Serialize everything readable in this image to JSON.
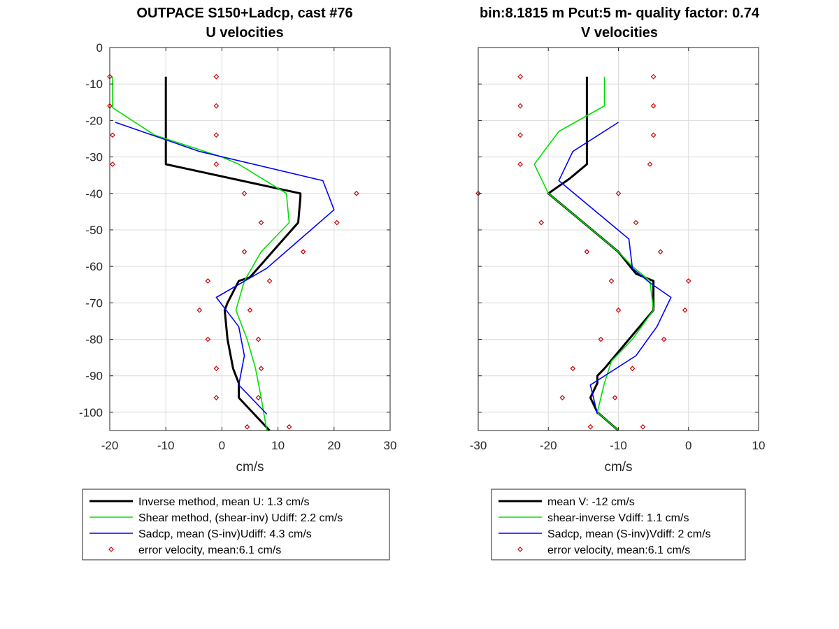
{
  "chart_data": [
    {
      "type": "line",
      "title": "OUTPACE S150+Ladcp, cast #76",
      "subtitle": "U velocities",
      "xlabel": "cm/s",
      "ylabel": "",
      "xlim": [
        -20,
        30
      ],
      "ylim": [
        -105,
        0
      ],
      "xticks": [
        -20,
        -10,
        0,
        10,
        20,
        30
      ],
      "yticks": [
        0,
        -10,
        -20,
        -30,
        -40,
        -50,
        -60,
        -70,
        -80,
        -90,
        -100
      ],
      "grid": true,
      "legend_position": "below",
      "series": [
        {
          "name": "Inverse method, mean U:  1.3 cm/s",
          "color": "#000000",
          "style": "line-thick",
          "x": [
            -10,
            -10,
            -10,
            -10,
            14,
            14,
            13.6,
            9,
            5,
            3,
            1,
            0.5,
            1,
            2,
            3,
            3,
            3,
            8.5
          ],
          "y": [
            -8,
            -16,
            -24,
            -32,
            -40,
            -41,
            -48,
            -56,
            -63,
            -64,
            -70,
            -72,
            -80,
            -88,
            -92,
            -96,
            -96,
            -105
          ]
        },
        {
          "name": "Shear method, (shear-inv)  Udiff:  2.2 cm/s",
          "color": "#00e000",
          "style": "line",
          "x": [
            -19.5,
            -19.5,
            -19.5,
            -12,
            0,
            3,
            11.5,
            12,
            7,
            4,
            2.5,
            4.5,
            6,
            7,
            8
          ],
          "y": [
            -8,
            -16,
            -16.5,
            -24,
            -30,
            -32,
            -40,
            -48,
            -56,
            -64,
            -72,
            -80,
            -88,
            -96,
            -105
          ]
        },
        {
          "name": "Sadcp, mean (S-inv)Udiff: 4.3 cm/s",
          "color": "#0000ff",
          "style": "line",
          "x": [
            -19,
            -4,
            18,
            20,
            14,
            8,
            -1,
            3,
            4,
            3,
            8
          ],
          "y": [
            -20.5,
            -28.5,
            -36.5,
            -44.5,
            -52.5,
            -60.5,
            -68.5,
            -76.5,
            -84.5,
            -92.5,
            -100.5
          ]
        },
        {
          "name": "error velocity, mean:6.1 cm/s",
          "color": "#cc0000",
          "style": "markers",
          "x": [
            -20,
            -1,
            -20,
            -1,
            -19.5,
            -1,
            -19.5,
            -1,
            4,
            24,
            7,
            20.5,
            4,
            14.5,
            -2.5,
            8.5,
            -4,
            5,
            -2.5,
            6.5,
            -1,
            7,
            -1,
            6.5,
            4.5,
            12
          ],
          "y": [
            -8,
            -8,
            -16,
            -16,
            -24,
            -24,
            -32,
            -32,
            -40,
            -40,
            -48,
            -48,
            -56,
            -56,
            -64,
            -64,
            -72,
            -72,
            -80,
            -80,
            -88,
            -88,
            -96,
            -96,
            -104,
            -104
          ]
        }
      ]
    },
    {
      "type": "line",
      "title": "bin:8.1815 m  Pcut:5 m- quality factor:  0.74",
      "subtitle": "V velocities",
      "xlabel": "cm/s",
      "ylabel": "",
      "xlim": [
        -30,
        10
      ],
      "ylim": [
        -105,
        0
      ],
      "xticks": [
        -30,
        -20,
        -10,
        0,
        10
      ],
      "yticks": [
        0,
        -10,
        -20,
        -30,
        -40,
        -50,
        -60,
        -70,
        -80,
        -90,
        -100
      ],
      "grid": true,
      "legend_position": "below",
      "series": [
        {
          "name": "mean V:  -12 cm/s",
          "color": "#000000",
          "style": "line-thick",
          "x": [
            -14.5,
            -14.5,
            -14.5,
            -14.5,
            -17,
            -20,
            -15,
            -10,
            -7.5,
            -5,
            -5,
            -12,
            -13,
            -13,
            -14,
            -13,
            -10
          ],
          "y": [
            -8,
            -16,
            -24,
            -32,
            -36,
            -40,
            -48,
            -56,
            -62,
            -64,
            -72,
            -88,
            -90,
            -92,
            -96,
            -100,
            -105
          ]
        },
        {
          "name": "shear-inverse Vdiff:  1.1 cm/s",
          "color": "#00e000",
          "style": "line",
          "x": [
            -12,
            -12,
            -18.5,
            -22,
            -20,
            -15,
            -10,
            -8,
            -5.5,
            -5,
            -8,
            -11,
            -12,
            -12.5,
            -13,
            -10
          ],
          "y": [
            -8,
            -16,
            -23,
            -32,
            -40,
            -48,
            -56,
            -60,
            -64,
            -72,
            -80,
            -86,
            -92,
            -96,
            -100,
            -105
          ]
        },
        {
          "name": "Sadcp, mean (S-inv)Vdiff: 2 cm/s",
          "color": "#0000ff",
          "style": "line",
          "x": [
            -10,
            -16.5,
            -18.5,
            -13.5,
            -8.5,
            -8,
            -5.5,
            -2.5,
            -4.5,
            -7.5,
            -14,
            -13.5,
            -13
          ],
          "y": [
            -20.5,
            -28.5,
            -36.5,
            -44.5,
            -52.5,
            -60.5,
            -64.5,
            -68.5,
            -76.5,
            -84.5,
            -92.5,
            -96.5,
            -100.5
          ]
        },
        {
          "name": "error velocity, mean:6.1 cm/s",
          "color": "#cc0000",
          "style": "markers",
          "x": [
            -24,
            -5,
            -24,
            -5,
            -24,
            -5,
            -24,
            -5.5,
            -30,
            -10,
            -21,
            -7.5,
            -14.5,
            -4,
            -11,
            0,
            -10,
            -0.5,
            -12.5,
            -3.5,
            -16.5,
            -8,
            -18,
            -10.5,
            -14,
            -6.5
          ],
          "y": [
            -8,
            -8,
            -16,
            -16,
            -24,
            -24,
            -32,
            -32,
            -40,
            -40,
            -48,
            -48,
            -56,
            -56,
            -64,
            -64,
            -72,
            -72,
            -80,
            -80,
            -88,
            -88,
            -96,
            -96,
            -104,
            -104
          ]
        }
      ]
    }
  ]
}
